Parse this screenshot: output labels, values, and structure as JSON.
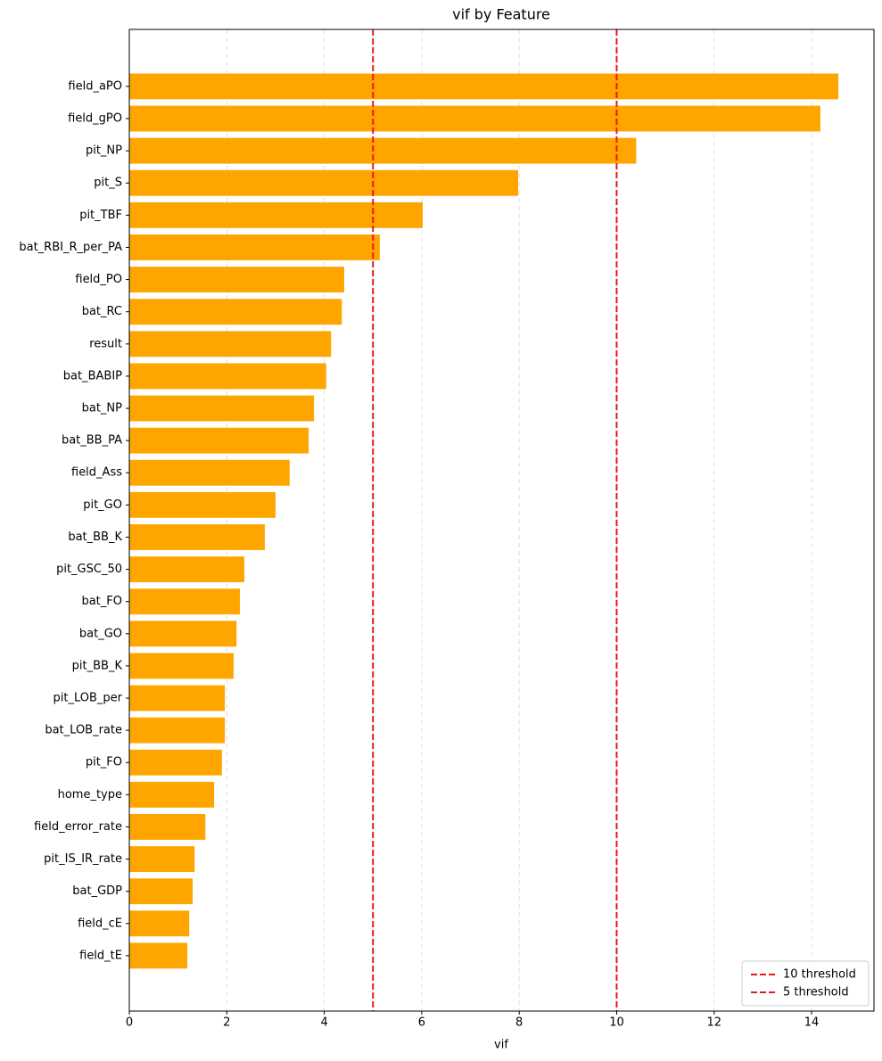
{
  "chart_data": {
    "type": "barh",
    "title": "vif by Feature",
    "x_label": "vif",
    "categories": [
      "field_aPO",
      "field_gPO",
      "pit_NP",
      "pit_S",
      "pit_TBF",
      "bat_RBI_R_per_PA",
      "field_PO",
      "bat_RC",
      "result",
      "bat_BABIP",
      "bat_NP",
      "bat_BB_PA",
      "field_Ass",
      "pit_GO",
      "bat_BB_K",
      "pit_GSC_50",
      "bat_FO",
      "bat_GO",
      "pit_BB_K",
      "pit_LOB_per",
      "bat_LOB_rate",
      "pit_FO",
      "home_type",
      "field_error_rate",
      "pit_IS_IR_rate",
      "bat_GDP",
      "field_cE",
      "field_tE"
    ],
    "values": [
      14.55,
      14.18,
      10.4,
      7.98,
      6.02,
      5.14,
      4.41,
      4.36,
      4.14,
      4.04,
      3.79,
      3.68,
      3.29,
      3.0,
      2.78,
      2.36,
      2.27,
      2.2,
      2.14,
      1.96,
      1.96,
      1.9,
      1.74,
      1.56,
      1.34,
      1.3,
      1.23,
      1.19
    ],
    "color": "#ffa500",
    "xlim": [
      0,
      15.28
    ],
    "xticks": [
      0,
      2,
      4,
      6,
      8,
      10,
      12,
      14
    ],
    "grid": true,
    "thresholds": [
      {
        "value": 10,
        "label": "10 threshold",
        "color": "#e41a1c"
      },
      {
        "value": 5,
        "label": "5 threshold",
        "color": "#e41a1c"
      }
    ],
    "legend": "lower right"
  }
}
